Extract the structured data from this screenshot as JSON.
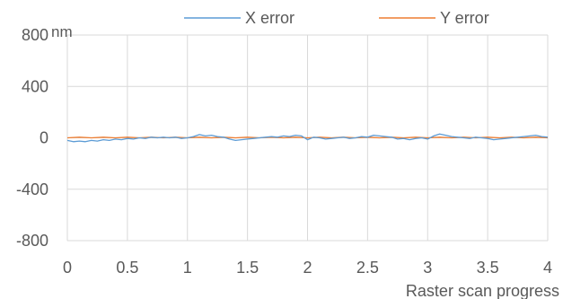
{
  "chart_data": {
    "type": "line",
    "title": "",
    "xlabel": "Raster scan progress",
    "ylabel": "nm",
    "xlim": [
      0,
      4
    ],
    "ylim": [
      -800,
      800
    ],
    "x_ticks": [
      0,
      0.5,
      1,
      1.5,
      2,
      2.5,
      3,
      3.5,
      4
    ],
    "y_ticks": [
      -800,
      -400,
      0,
      400,
      800
    ],
    "x_tick_labels": [
      "0",
      "0.5",
      "1",
      "1.5",
      "2",
      "2.5",
      "3",
      "3.5",
      "4"
    ],
    "y_tick_labels": [
      "-800",
      "-400",
      "0",
      "400",
      "800"
    ],
    "grid": true,
    "legend_position": "top",
    "series": [
      {
        "name": "X error",
        "color": "#5b9bd5",
        "x": [
          0,
          0.05,
          0.1,
          0.15,
          0.2,
          0.25,
          0.3,
          0.35,
          0.4,
          0.45,
          0.5,
          0.55,
          0.6,
          0.65,
          0.7,
          0.75,
          0.8,
          0.85,
          0.9,
          0.95,
          1.0,
          1.05,
          1.1,
          1.15,
          1.2,
          1.25,
          1.3,
          1.35,
          1.4,
          1.45,
          1.5,
          1.55,
          1.6,
          1.65,
          1.7,
          1.75,
          1.8,
          1.85,
          1.9,
          1.95,
          2.0,
          2.05,
          2.1,
          2.15,
          2.2,
          2.25,
          2.3,
          2.35,
          2.4,
          2.45,
          2.5,
          2.55,
          2.6,
          2.65,
          2.7,
          2.75,
          2.8,
          2.85,
          2.9,
          2.95,
          3.0,
          3.05,
          3.1,
          3.15,
          3.2,
          3.25,
          3.3,
          3.35,
          3.4,
          3.45,
          3.5,
          3.55,
          3.6,
          3.65,
          3.7,
          3.75,
          3.8,
          3.85,
          3.9,
          3.95,
          4.0
        ],
        "values": [
          -20,
          -30,
          -25,
          -30,
          -20,
          -25,
          -15,
          -20,
          -10,
          -15,
          -5,
          -10,
          0,
          -5,
          5,
          0,
          5,
          0,
          5,
          -5,
          0,
          10,
          25,
          15,
          20,
          10,
          5,
          -10,
          -20,
          -15,
          -10,
          -5,
          0,
          5,
          10,
          5,
          15,
          10,
          20,
          15,
          -15,
          5,
          0,
          -10,
          -5,
          0,
          5,
          -5,
          0,
          10,
          5,
          20,
          15,
          10,
          5,
          -10,
          -5,
          -15,
          -5,
          0,
          -10,
          15,
          30,
          20,
          10,
          5,
          0,
          -5,
          5,
          0,
          -5,
          -15,
          -10,
          -5,
          0,
          5,
          10,
          15,
          20,
          10,
          5
        ]
      },
      {
        "name": "Y error",
        "color": "#ed7d31",
        "x": [
          0,
          0.1,
          0.2,
          0.3,
          0.4,
          0.5,
          0.6,
          0.7,
          0.8,
          0.9,
          1.0,
          1.1,
          1.2,
          1.3,
          1.4,
          1.5,
          1.6,
          1.7,
          1.8,
          1.9,
          2.0,
          2.1,
          2.2,
          2.3,
          2.4,
          2.5,
          2.6,
          2.7,
          2.8,
          2.9,
          3.0,
          3.1,
          3.2,
          3.3,
          3.4,
          3.5,
          3.6,
          3.7,
          3.8,
          3.9,
          4.0
        ],
        "values": [
          0,
          5,
          0,
          5,
          0,
          5,
          0,
          5,
          0,
          5,
          0,
          5,
          0,
          5,
          0,
          5,
          0,
          5,
          0,
          5,
          0,
          5,
          0,
          5,
          0,
          5,
          0,
          5,
          0,
          5,
          0,
          5,
          0,
          5,
          0,
          5,
          0,
          5,
          0,
          5,
          0
        ]
      }
    ]
  }
}
